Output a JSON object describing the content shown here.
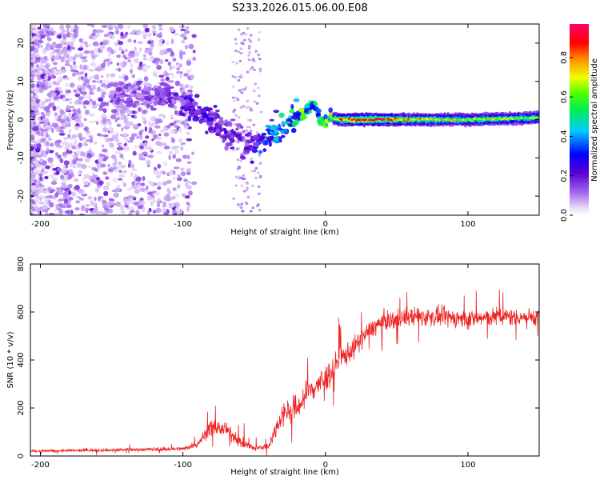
{
  "title": "S233.2026.015.06.00.E08",
  "colors": {
    "snr_line": "#ee2222",
    "frame": "#000000",
    "background": "#ffffff"
  },
  "chart_data": [
    {
      "type": "heatmap",
      "name": "spectrogram",
      "xlabel": "Height of straight line (km)",
      "ylabel": "Frequency (Hz)",
      "xlim": [
        -207,
        150
      ],
      "ylim": [
        -25,
        25
      ],
      "xticks": [
        -200,
        -100,
        0,
        100
      ],
      "yticks": [
        -20,
        -10,
        0,
        10,
        20
      ],
      "colorbar": {
        "label": "Normalized spectral amplitude",
        "range": [
          0.0,
          0.97
        ],
        "ticks": [
          "0.0",
          "0.2",
          "0.4",
          "0.6",
          "0.8"
        ],
        "tick_values": [
          0.0,
          0.2,
          0.4,
          0.6,
          0.8
        ],
        "colormap": "rainbow (purple-blue-cyan-green-yellow-red-magenta)"
      },
      "ridge": {
        "description": "frequency ridge of the signal vs height",
        "x": [
          -140,
          -110,
          -95,
          -80,
          -65,
          -55,
          -45,
          -35,
          -25,
          -15,
          -8,
          -3,
          3,
          10,
          30,
          60,
          100,
          150
        ],
        "freq": [
          6,
          6,
          4,
          0,
          -4,
          -7,
          -5,
          -3,
          -1,
          2,
          4,
          -1,
          0.5,
          0,
          0,
          0,
          0,
          0.5
        ],
        "amplitude": [
          0.15,
          0.18,
          0.25,
          0.25,
          0.2,
          0.2,
          0.35,
          0.4,
          0.5,
          0.6,
          0.5,
          0.55,
          0.65,
          0.85,
          0.95,
          0.75,
          0.7,
          0.65
        ]
      }
    },
    {
      "type": "line",
      "name": "snr",
      "xlabel": "Height of straight line (km)",
      "ylabel": "SNR (10 * v/v)",
      "xlim": [
        -207,
        150
      ],
      "ylim": [
        0,
        800
      ],
      "xticks": [
        -200,
        -100,
        0,
        100
      ],
      "yticks": [
        0,
        200,
        400,
        600,
        800
      ],
      "envelope": {
        "description": "noisy SNR trace envelope (mean and spread, data units)",
        "x": [
          -207,
          -150,
          -100,
          -90,
          -80,
          -70,
          -60,
          -50,
          -40,
          -30,
          -20,
          -10,
          0,
          10,
          20,
          30,
          40,
          60,
          80,
          100,
          120,
          150
        ],
        "mean": [
          20,
          25,
          30,
          50,
          120,
          110,
          60,
          30,
          40,
          180,
          200,
          280,
          320,
          400,
          450,
          520,
          560,
          580,
          580,
          570,
          580,
          580
        ],
        "spread": [
          10,
          12,
          15,
          25,
          60,
          50,
          40,
          25,
          30,
          90,
          100,
          110,
          110,
          90,
          80,
          70,
          70,
          70,
          70,
          70,
          70,
          60
        ]
      }
    }
  ]
}
